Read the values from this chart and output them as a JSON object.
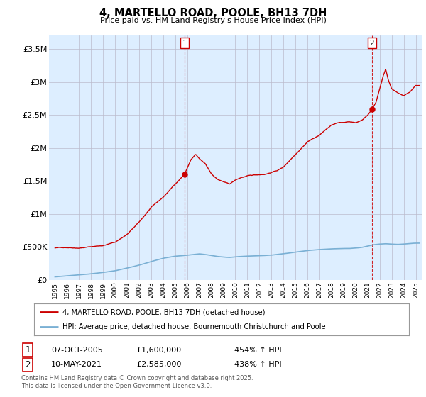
{
  "title": "4, MARTELLO ROAD, POOLE, BH13 7DH",
  "subtitle": "Price paid vs. HM Land Registry's House Price Index (HPI)",
  "ylim": [
    0,
    3700000
  ],
  "yticks": [
    0,
    500000,
    1000000,
    1500000,
    2000000,
    2500000,
    3000000,
    3500000
  ],
  "ytick_labels": [
    "£0",
    "£500K",
    "£1M",
    "£1.5M",
    "£2M",
    "£2.5M",
    "£3M",
    "£3.5M"
  ],
  "xlim_start": 1994.5,
  "xlim_end": 2025.5,
  "red_line_color": "#cc0000",
  "blue_line_color": "#7ab0d4",
  "chart_bg_color": "#ddeeff",
  "point1_x": 2005.77,
  "point1_y": 1600000,
  "point2_x": 2021.36,
  "point2_y": 2585000,
  "legend_red": "4, MARTELLO ROAD, POOLE, BH13 7DH (detached house)",
  "legend_blue": "HPI: Average price, detached house, Bournemouth Christchurch and Poole",
  "table_row1": [
    "1",
    "07-OCT-2005",
    "£1,600,000",
    "454% ↑ HPI"
  ],
  "table_row2": [
    "2",
    "10-MAY-2021",
    "£2,585,000",
    "438% ↑ HPI"
  ],
  "footnote": "Contains HM Land Registry data © Crown copyright and database right 2025.\nThis data is licensed under the Open Government Licence v3.0.",
  "background_color": "#ffffff",
  "grid_color": "#bbbbcc"
}
